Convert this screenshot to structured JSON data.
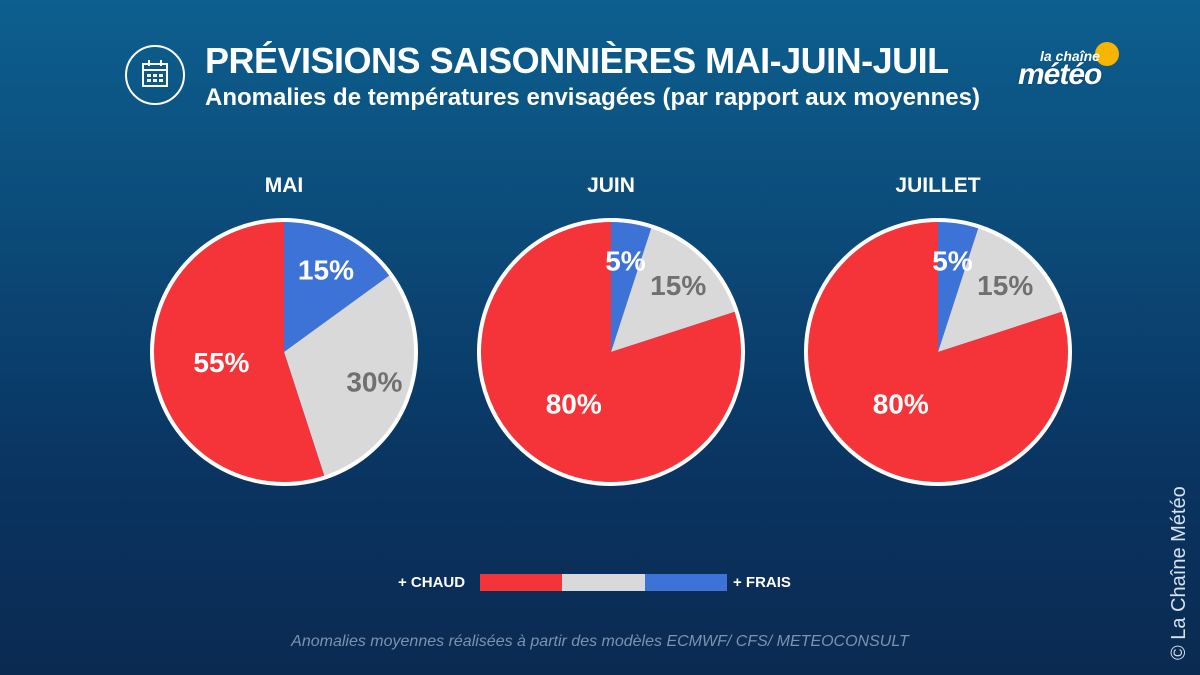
{
  "header": {
    "title": "PRÉVISIONS SAISONNIÈRES MAI-JUIN-JUIL",
    "subtitle": "Anomalies de températures envisagées (par rapport aux moyennes)",
    "icon": "calendar-icon"
  },
  "logo": {
    "small": "la chaîne",
    "big": "météo"
  },
  "colors": {
    "chaud": "#f5343a",
    "normal": "#d9d9d9",
    "frais": "#3d72d6",
    "outline": "#ffffff",
    "label_dark": "#707070"
  },
  "chart_data": [
    {
      "type": "pie",
      "title": "MAI",
      "slices": [
        {
          "category": "frais",
          "value": 15,
          "label": "15%"
        },
        {
          "category": "normal",
          "value": 30,
          "label": "30%"
        },
        {
          "category": "chaud",
          "value": 55,
          "label": "55%"
        }
      ]
    },
    {
      "type": "pie",
      "title": "JUIN",
      "slices": [
        {
          "category": "frais",
          "value": 5,
          "label": "5%"
        },
        {
          "category": "normal",
          "value": 15,
          "label": "15%"
        },
        {
          "category": "chaud",
          "value": 80,
          "label": "80%"
        }
      ]
    },
    {
      "type": "pie",
      "title": "JUILLET",
      "slices": [
        {
          "category": "frais",
          "value": 5,
          "label": "5%"
        },
        {
          "category": "normal",
          "value": 15,
          "label": "15%"
        },
        {
          "category": "chaud",
          "value": 80,
          "label": "80%"
        }
      ]
    }
  ],
  "legend": {
    "left": "+ CHAUD",
    "right": "+ FRAIS"
  },
  "footnote": "Anomalies moyennes réalisées à partir des modèles ECMWF/ CFS/ METEOCONSULT",
  "copyright": "© La Chaîne Météo"
}
